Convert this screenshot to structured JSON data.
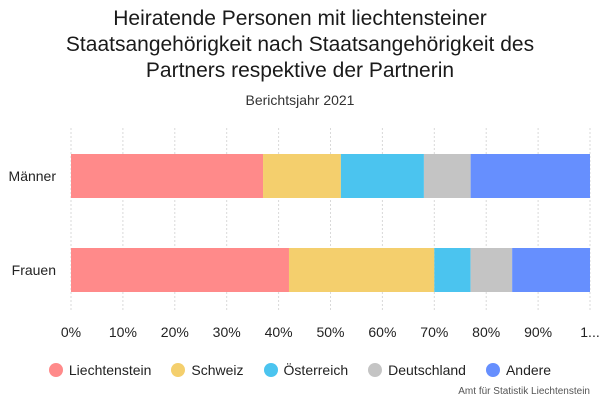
{
  "title": "Heiratende Personen mit liechtensteiner Staatsangehörigkeit nach Staatsangehörigkeit des Partners respektive der Partnerin",
  "subtitle": "Berichtsjahr 2021",
  "source": "Amt für Statistik Liechtenstein",
  "chart_data": {
    "type": "bar",
    "orientation": "horizontal",
    "stacked": true,
    "categories": [
      "Männer",
      "Frauen"
    ],
    "series": [
      {
        "name": "Liechtenstein",
        "color": "#ff8a8a",
        "values": [
          37,
          42
        ]
      },
      {
        "name": "Schweiz",
        "color": "#f4cf6d",
        "values": [
          15,
          28
        ]
      },
      {
        "name": "Österreich",
        "color": "#4bc4ef",
        "values": [
          16,
          7
        ]
      },
      {
        "name": "Deutschland",
        "color": "#c4c4c4",
        "values": [
          9,
          8
        ]
      },
      {
        "name": "Andere",
        "color": "#668ffe",
        "values": [
          23,
          15
        ]
      }
    ],
    "xlim": [
      0,
      100
    ],
    "x_ticks": [
      "0%",
      "10%",
      "20%",
      "30%",
      "40%",
      "50%",
      "60%",
      "70%",
      "80%",
      "90%",
      "1..."
    ],
    "grid": true,
    "legend_position": "bottom"
  }
}
